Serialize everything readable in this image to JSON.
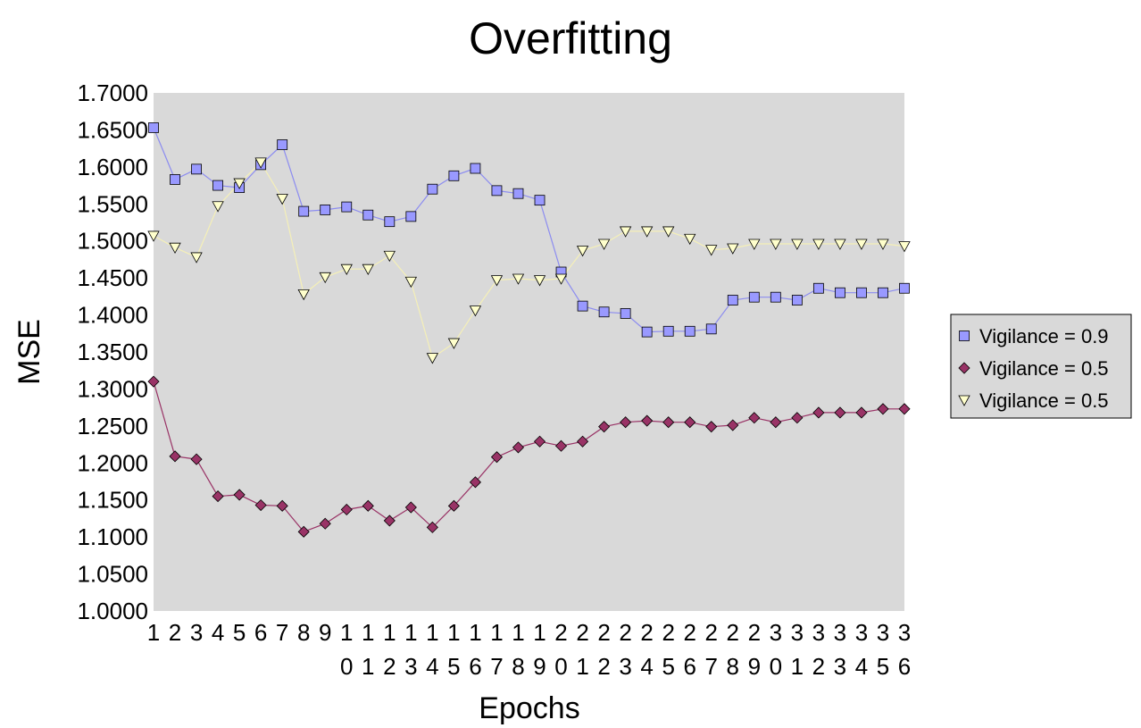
{
  "chart_data": {
    "type": "line",
    "title": "Overfitting",
    "xlabel": "Epochs",
    "ylabel": "MSE",
    "ylim": [
      1.0,
      1.7
    ],
    "y_ticks": [
      "1.0000",
      "1.0500",
      "1.1000",
      "1.1500",
      "1.2000",
      "1.2500",
      "1.3000",
      "1.3500",
      "1.4000",
      "1.4500",
      "1.5000",
      "1.5500",
      "1.6000",
      "1.6500",
      "1.7000"
    ],
    "x": [
      "1",
      "2",
      "3",
      "4",
      "5",
      "6",
      "7",
      "8",
      "9",
      "10",
      "11",
      "12",
      "13",
      "14",
      "15",
      "16",
      "17",
      "18",
      "19",
      "20",
      "21",
      "22",
      "23",
      "24",
      "25",
      "26",
      "27",
      "28",
      "29",
      "30",
      "31",
      "32",
      "33",
      "34",
      "35",
      "36"
    ],
    "grid": false,
    "plot_background": "#d9d9d9",
    "legend_position": "right",
    "series": [
      {
        "name": "Vigilance = 0.9",
        "marker": "square",
        "line_color": "#8c8cf0",
        "marker_color": "#9999ff",
        "values": [
          1.653,
          1.583,
          1.597,
          1.575,
          1.572,
          1.603,
          1.63,
          1.54,
          1.542,
          1.546,
          1.535,
          1.526,
          1.533,
          1.57,
          1.588,
          1.598,
          1.568,
          1.564,
          1.555,
          1.458,
          1.412,
          1.404,
          1.402,
          1.377,
          1.378,
          1.378,
          1.381,
          1.42,
          1.424,
          1.424,
          1.42,
          1.436,
          1.43,
          1.43,
          1.43,
          1.436
        ]
      },
      {
        "name": "Vigilance = 0.5",
        "marker": "diamond",
        "line_color": "#993366",
        "marker_color": "#993366",
        "values": [
          1.31,
          1.209,
          1.205,
          1.155,
          1.157,
          1.143,
          1.142,
          1.107,
          1.118,
          1.137,
          1.142,
          1.122,
          1.14,
          1.113,
          1.142,
          1.174,
          1.208,
          1.221,
          1.229,
          1.223,
          1.229,
          1.249,
          1.255,
          1.257,
          1.255,
          1.255,
          1.249,
          1.251,
          1.261,
          1.255,
          1.261,
          1.268,
          1.268,
          1.268,
          1.273,
          1.273
        ]
      },
      {
        "name": "Vigilance = 0.5",
        "marker": "triangle-down",
        "line_color": "#f5f0b8",
        "marker_color": "#ffffcc",
        "values": [
          1.507,
          1.491,
          1.478,
          1.547,
          1.578,
          1.606,
          1.557,
          1.428,
          1.451,
          1.462,
          1.462,
          1.48,
          1.445,
          1.342,
          1.362,
          1.406,
          1.447,
          1.449,
          1.447,
          1.449,
          1.487,
          1.496,
          1.513,
          1.513,
          1.513,
          1.503,
          1.488,
          1.49,
          1.496,
          1.496,
          1.496,
          1.496,
          1.496,
          1.496,
          1.496,
          1.493
        ]
      }
    ]
  }
}
